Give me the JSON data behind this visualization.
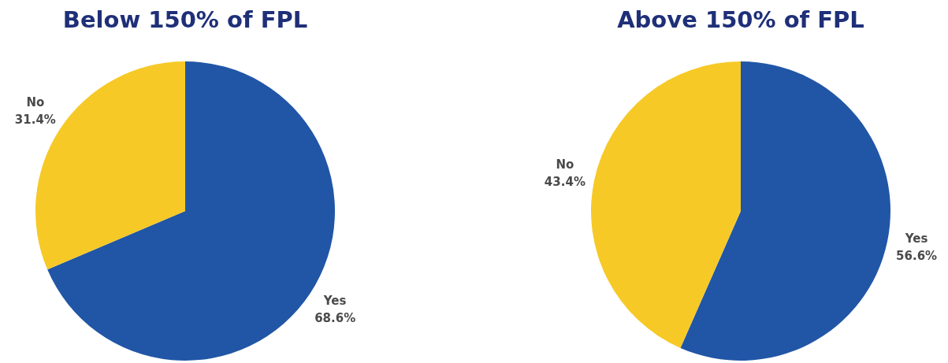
{
  "chart_data": [
    {
      "type": "pie",
      "title": "Below 150% of FPL",
      "categories": [
        "Yes",
        "No"
      ],
      "values": [
        68.6,
        31.4
      ],
      "colors": [
        "#2156a6",
        "#f6c926"
      ],
      "value_labels": [
        "68.6%",
        "31.4%"
      ]
    },
    {
      "type": "pie",
      "title": "Above 150% of FPL",
      "categories": [
        "Yes",
        "No"
      ],
      "values": [
        56.6,
        43.4
      ],
      "colors": [
        "#2156a6",
        "#f6c926"
      ],
      "value_labels": [
        "56.6%",
        "43.4%"
      ]
    }
  ]
}
